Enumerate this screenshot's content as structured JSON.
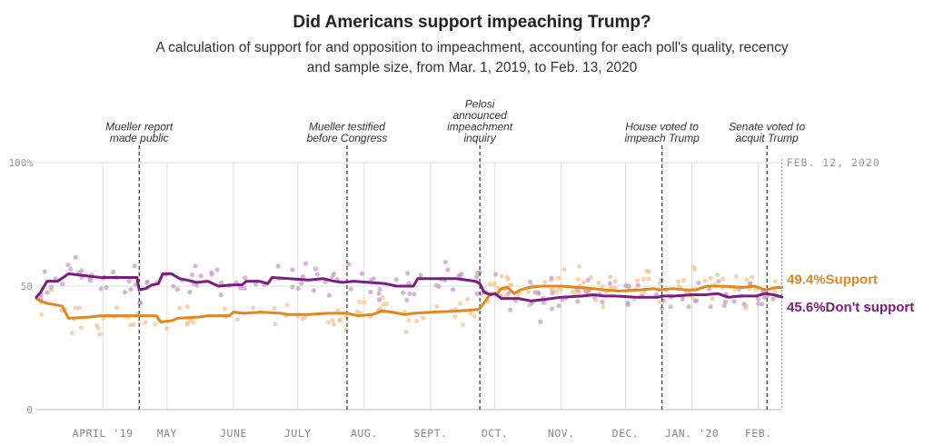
{
  "header": {
    "title": "Did Americans support impeaching Trump?",
    "subtitle_line1": "A calculation of support for and opposition to impeachment, accounting for each poll's quality, recency",
    "subtitle_line2": "and sample size, from Mar. 1, 2019, to Feb. 13, 2020"
  },
  "colors": {
    "support": "#e1871e",
    "support_light": "#f6c591",
    "oppose": "#7b1d80",
    "oppose_light": "#c99ccb",
    "grid": "#dddddd"
  },
  "chart_data": {
    "type": "line",
    "title": "Did Americans support impeaching Trump?",
    "x_range_days": [
      0,
      349
    ],
    "ylim": [
      0,
      100
    ],
    "y_ticks": [
      {
        "value": 0,
        "label": "0"
      },
      {
        "value": 50,
        "label": "50"
      },
      {
        "value": 100,
        "label": "100%"
      }
    ],
    "x_ticks": [
      {
        "day": 31,
        "label": "APRIL '19"
      },
      {
        "day": 61,
        "label": "MAY"
      },
      {
        "day": 92,
        "label": "JUNE"
      },
      {
        "day": 122,
        "label": "JULY"
      },
      {
        "day": 153,
        "label": "AUG."
      },
      {
        "day": 184,
        "label": "SEPT."
      },
      {
        "day": 214,
        "label": "OCT."
      },
      {
        "day": 245,
        "label": "NOV."
      },
      {
        "day": 275,
        "label": "DEC."
      },
      {
        "day": 306,
        "label": "JAN. '20"
      },
      {
        "day": 337,
        "label": "FEB."
      }
    ],
    "events": [
      {
        "day": 48,
        "lines": [
          "Mueller report",
          "made public"
        ]
      },
      {
        "day": 145,
        "lines": [
          "Mueller testified",
          "before Congress"
        ]
      },
      {
        "day": 207,
        "lines": [
          "Pelosi",
          "announced",
          "impeachment",
          "inquiry"
        ]
      },
      {
        "day": 292,
        "lines": [
          "House voted to",
          "impeach Trump"
        ]
      },
      {
        "day": 341,
        "lines": [
          "Senate voted to",
          "acquit Trump"
        ]
      }
    ],
    "end_marker": {
      "day": 348,
      "label": "FEB. 12, 2020"
    },
    "series": [
      {
        "name": "Support",
        "end_value": "49.4%",
        "end_label": "Support",
        "points": [
          [
            0,
            45
          ],
          [
            2,
            44
          ],
          [
            5,
            43
          ],
          [
            12,
            42
          ],
          [
            15,
            37
          ],
          [
            25,
            37.5
          ],
          [
            30,
            38
          ],
          [
            45,
            38
          ],
          [
            48,
            38
          ],
          [
            56,
            38
          ],
          [
            58,
            35.5
          ],
          [
            63,
            36
          ],
          [
            66,
            37
          ],
          [
            76,
            37.5
          ],
          [
            80,
            38
          ],
          [
            90,
            38
          ],
          [
            92,
            39.5
          ],
          [
            97,
            39
          ],
          [
            105,
            39.5
          ],
          [
            114,
            39
          ],
          [
            118,
            38.5
          ],
          [
            127,
            38.5
          ],
          [
            136,
            39
          ],
          [
            145,
            39
          ],
          [
            150,
            38
          ],
          [
            157,
            38.5
          ],
          [
            161,
            40
          ],
          [
            166,
            39.5
          ],
          [
            172,
            38.5
          ],
          [
            176,
            39
          ],
          [
            185,
            39.5
          ],
          [
            198,
            40
          ],
          [
            206,
            40.5
          ],
          [
            207,
            41
          ],
          [
            210,
            44.5
          ],
          [
            212,
            47
          ],
          [
            215,
            47
          ],
          [
            217,
            49
          ],
          [
            220,
            49.5
          ],
          [
            223,
            47
          ],
          [
            226,
            48.5
          ],
          [
            230,
            49.5
          ],
          [
            236,
            50
          ],
          [
            245,
            50
          ],
          [
            260,
            49
          ],
          [
            265,
            48.5
          ],
          [
            272,
            48
          ],
          [
            282,
            48.5
          ],
          [
            288,
            49
          ],
          [
            291,
            48.5
          ],
          [
            297,
            49
          ],
          [
            303,
            48.5
          ],
          [
            308,
            48.5
          ],
          [
            313,
            50
          ],
          [
            320,
            50
          ],
          [
            330,
            49.5
          ],
          [
            335,
            50
          ],
          [
            340,
            48.5
          ],
          [
            346,
            49.5
          ],
          [
            348,
            49.4
          ]
        ]
      },
      {
        "name": "Don't support",
        "end_value": "45.6%",
        "end_label": "Don't support",
        "points": [
          [
            0,
            45.5
          ],
          [
            2,
            47.5
          ],
          [
            5,
            52
          ],
          [
            10,
            52
          ],
          [
            15,
            55
          ],
          [
            25,
            54
          ],
          [
            30,
            53.5
          ],
          [
            47,
            53.5
          ],
          [
            48,
            48.5
          ],
          [
            51,
            49
          ],
          [
            54,
            50.5
          ],
          [
            57,
            51
          ],
          [
            59,
            55
          ],
          [
            63,
            55
          ],
          [
            67,
            53
          ],
          [
            70,
            52.5
          ],
          [
            75,
            51.5
          ],
          [
            80,
            52
          ],
          [
            85,
            50
          ],
          [
            92,
            50.5
          ],
          [
            96,
            50.5
          ],
          [
            98,
            52
          ],
          [
            104,
            52
          ],
          [
            108,
            51
          ],
          [
            110,
            53.5
          ],
          [
            118,
            53
          ],
          [
            127,
            52.5
          ],
          [
            134,
            53
          ],
          [
            139,
            52
          ],
          [
            143,
            51.5
          ],
          [
            148,
            52
          ],
          [
            155,
            51.5
          ],
          [
            163,
            51
          ],
          [
            168,
            50
          ],
          [
            176,
            50
          ],
          [
            178,
            53
          ],
          [
            184,
            53
          ],
          [
            196,
            53
          ],
          [
            205,
            52
          ],
          [
            207,
            51
          ],
          [
            209,
            47.5
          ],
          [
            212,
            46.5
          ],
          [
            214,
            47
          ],
          [
            217,
            45
          ],
          [
            225,
            45
          ],
          [
            231,
            44
          ],
          [
            236,
            44.5
          ],
          [
            245,
            45.5
          ],
          [
            255,
            46
          ],
          [
            260,
            46.5
          ],
          [
            265,
            46
          ],
          [
            270,
            46
          ],
          [
            280,
            45.5
          ],
          [
            290,
            45.5
          ],
          [
            293,
            46
          ],
          [
            298,
            46
          ],
          [
            306,
            46.5
          ],
          [
            312,
            46.5
          ],
          [
            318,
            47
          ],
          [
            323,
            45.5
          ],
          [
            329,
            46
          ],
          [
            336,
            46
          ],
          [
            340,
            47
          ],
          [
            344,
            46.5
          ],
          [
            348,
            45.6
          ]
        ]
      }
    ]
  }
}
